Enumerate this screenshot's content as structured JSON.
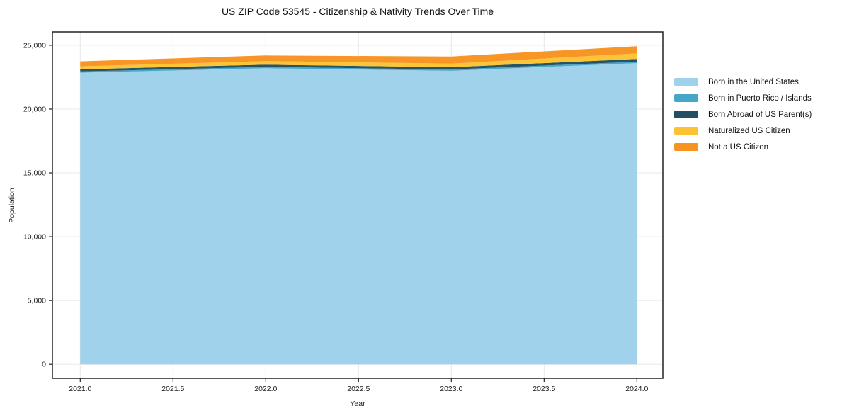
{
  "title": "US ZIP Code 53545 - Citizenship & Nativity Trends Over Time",
  "chart_data": {
    "type": "area",
    "stacked": true,
    "title": "US ZIP Code 53545 - Citizenship & Nativity Trends Over Time",
    "xlabel": "Year",
    "ylabel": "Population",
    "x": [
      2021,
      2022,
      2023,
      2024
    ],
    "series": [
      {
        "name": "Born in the United States",
        "color": "#99CFE9",
        "values": [
          22850,
          23200,
          23000,
          23600
        ]
      },
      {
        "name": "Born in Puerto Rico / Islands",
        "color": "#3BA1C5",
        "values": [
          100,
          110,
          110,
          110
        ]
      },
      {
        "name": "Born Abroad of US Parent(s)",
        "color": "#17465B",
        "values": [
          170,
          170,
          170,
          220
        ]
      },
      {
        "name": "Naturalized US Citizen",
        "color": "#FCBF28",
        "values": [
          230,
          280,
          280,
          440
        ]
      },
      {
        "name": "Not a US Citizen",
        "color": "#F68D15",
        "values": [
          390,
          440,
          560,
          560
        ]
      }
    ],
    "stack_totals": [
      23740,
      24200,
      24120,
      24930
    ],
    "x_ticks": [
      2021.0,
      2021.5,
      2022.0,
      2022.5,
      2023.0,
      2023.5,
      2024.0
    ],
    "x_tick_labels": [
      "2021.0",
      "2021.5",
      "2022.0",
      "2022.5",
      "2023.0",
      "2023.5",
      "2024.0"
    ],
    "y_ticks": [
      0,
      5000,
      10000,
      15000,
      20000,
      25000
    ],
    "y_tick_labels": [
      "0",
      "5,000",
      "10,000",
      "15,000",
      "20,000",
      "25,000"
    ],
    "xlim": [
      2020.85,
      2024.14
    ],
    "ylim": [
      -1100,
      26050
    ],
    "grid": true,
    "legend_position": "outside-right",
    "colors": {
      "grid": "#e8e8e8",
      "spine": "#222222",
      "tick_label": "#1a1a1a",
      "background": "#ffffff"
    }
  }
}
